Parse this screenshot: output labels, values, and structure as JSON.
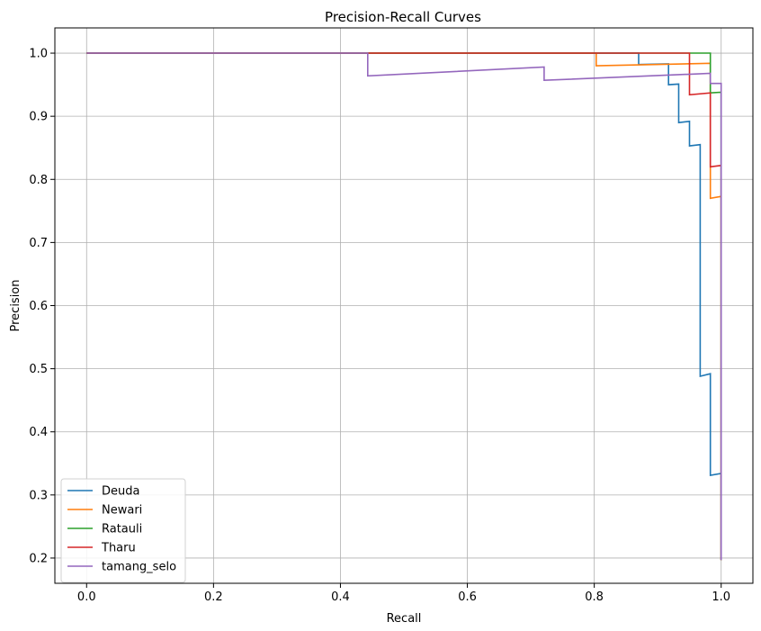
{
  "chart_data": {
    "type": "line",
    "title": "Precision-Recall Curves",
    "xlabel": "Recall",
    "ylabel": "Precision",
    "xlim": [
      -0.05,
      1.05
    ],
    "ylim": [
      0.16,
      1.04
    ],
    "xticks": [
      0.0,
      0.2,
      0.4,
      0.6,
      0.8,
      1.0
    ],
    "xtick_labels": [
      "0.0",
      "0.2",
      "0.4",
      "0.6",
      "0.8",
      "1.0"
    ],
    "yticks": [
      0.2,
      0.3,
      0.4,
      0.5,
      0.6,
      0.7,
      0.8,
      0.9,
      1.0
    ],
    "ytick_labels": [
      "0.2",
      "0.3",
      "0.4",
      "0.5",
      "0.6",
      "0.7",
      "0.8",
      "0.9",
      "1.0"
    ],
    "grid": true,
    "legend_position": "lower-left",
    "series": [
      {
        "name": "Deuda",
        "color": "#1f77b4",
        "points": [
          [
            0.0,
            1.0
          ],
          [
            0.87,
            1.0
          ],
          [
            0.87,
            0.982
          ],
          [
            0.917,
            0.983
          ],
          [
            0.917,
            0.95
          ],
          [
            0.933,
            0.951
          ],
          [
            0.933,
            0.89
          ],
          [
            0.95,
            0.892
          ],
          [
            0.95,
            0.853
          ],
          [
            0.967,
            0.855
          ],
          [
            0.967,
            0.488
          ],
          [
            0.983,
            0.492
          ],
          [
            0.983,
            0.331
          ],
          [
            1.0,
            0.334
          ],
          [
            1.0,
            0.197
          ]
        ]
      },
      {
        "name": "Newari",
        "color": "#ff7f0e",
        "points": [
          [
            0.0,
            1.0
          ],
          [
            0.803,
            1.0
          ],
          [
            0.803,
            0.98
          ],
          [
            0.983,
            0.984
          ],
          [
            0.983,
            0.77
          ],
          [
            1.0,
            0.773
          ],
          [
            1.0,
            0.197
          ]
        ]
      },
      {
        "name": "Ratauli",
        "color": "#2ca02c",
        "points": [
          [
            0.0,
            1.0
          ],
          [
            0.983,
            1.0
          ],
          [
            0.983,
            0.937
          ],
          [
            1.0,
            0.938
          ],
          [
            1.0,
            0.197
          ]
        ]
      },
      {
        "name": "Tharu",
        "color": "#d62728",
        "points": [
          [
            0.0,
            1.0
          ],
          [
            0.95,
            1.0
          ],
          [
            0.95,
            0.934
          ],
          [
            0.983,
            0.937
          ],
          [
            0.983,
            0.82
          ],
          [
            1.0,
            0.822
          ],
          [
            1.0,
            0.197
          ]
        ]
      },
      {
        "name": "tamang_selo",
        "color": "#9467bd",
        "points": [
          [
            0.0,
            1.0
          ],
          [
            0.443,
            1.0
          ],
          [
            0.443,
            0.964
          ],
          [
            0.721,
            0.978
          ],
          [
            0.721,
            0.957
          ],
          [
            0.983,
            0.968
          ],
          [
            0.983,
            0.952
          ],
          [
            1.0,
            0.952
          ],
          [
            1.0,
            0.197
          ]
        ]
      }
    ]
  }
}
